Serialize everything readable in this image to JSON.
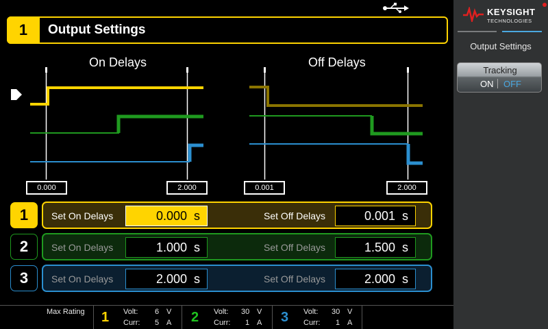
{
  "header": {
    "channel_number": "1",
    "title": "Output Settings",
    "usb_icon": "usb-icon"
  },
  "sidebar": {
    "brand": "KEYSIGHT",
    "brand_sub": "TECHNOLOGIES",
    "section_label": "Output Settings",
    "tracking": {
      "title": "Tracking",
      "on_label": "ON",
      "off_label": "OFF",
      "selected": "OFF"
    }
  },
  "diagrams": {
    "on": {
      "title": "On Delays",
      "start_label": "0.000",
      "end_label": "2.000"
    },
    "off": {
      "title": "Off Delays",
      "start_label": "0.001",
      "end_label": "2.000"
    }
  },
  "channels": [
    {
      "number": "1",
      "on_label": "Set On Delays",
      "on_value": "0.000",
      "on_unit": "s",
      "off_label": "Set Off Delays",
      "off_value": "0.001",
      "off_unit": "s",
      "color": "#ffd400",
      "active": true
    },
    {
      "number": "2",
      "on_label": "Set On Delays",
      "on_value": "1.000",
      "on_unit": "s",
      "off_label": "Set Off Delays",
      "off_value": "1.500",
      "off_unit": "s",
      "color": "#1f9a1f",
      "active": false
    },
    {
      "number": "3",
      "on_label": "Set On Delays",
      "on_value": "2.000",
      "on_unit": "s",
      "off_label": "Set Off Delays",
      "off_value": "2.000",
      "off_unit": "s",
      "color": "#2b8fd0",
      "active": false
    }
  ],
  "footer": {
    "max_rating_label": "Max Rating",
    "ratings": [
      {
        "channel": "1",
        "volt_label": "Volt:",
        "volt": "6",
        "volt_unit": "V",
        "curr_label": "Curr:",
        "curr": "5",
        "curr_unit": "A",
        "color": "#ffd400"
      },
      {
        "channel": "2",
        "volt_label": "Volt:",
        "volt": "30",
        "volt_unit": "V",
        "curr_label": "Curr:",
        "curr": "1",
        "curr_unit": "A",
        "color": "#1fc41f"
      },
      {
        "channel": "3",
        "volt_label": "Volt:",
        "volt": "30",
        "volt_unit": "V",
        "curr_label": "Curr:",
        "curr": "1",
        "curr_unit": "A",
        "color": "#2b8fd0"
      }
    ]
  }
}
